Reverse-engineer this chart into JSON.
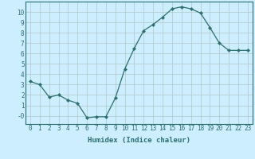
{
  "x": [
    0,
    1,
    2,
    3,
    4,
    5,
    6,
    7,
    8,
    9,
    10,
    11,
    12,
    13,
    14,
    15,
    16,
    17,
    18,
    19,
    20,
    21,
    22,
    23
  ],
  "y": [
    3.3,
    3.0,
    1.8,
    2.0,
    1.5,
    1.2,
    -0.2,
    -0.1,
    -0.1,
    1.7,
    4.5,
    6.5,
    8.2,
    8.8,
    9.5,
    10.3,
    10.5,
    10.3,
    9.9,
    8.5,
    7.0,
    6.3,
    6.3,
    6.3
  ],
  "line_color": "#2d6e6e",
  "marker": "D",
  "markersize": 2.2,
  "linewidth": 0.9,
  "background_color": "#cceeff",
  "grid_color": "#b0c8c8",
  "xlabel": "Humidex (Indice chaleur)",
  "xlabel_fontsize": 6.5,
  "ylabel_ticks": [
    0,
    1,
    2,
    3,
    4,
    5,
    6,
    7,
    8,
    9,
    10
  ],
  "ytick_labels": [
    "-0",
    "1",
    "2",
    "3",
    "4",
    "5",
    "6",
    "7",
    "8",
    "9",
    "10"
  ],
  "xtick_labels": [
    "0",
    "1",
    "2",
    "3",
    "4",
    "5",
    "6",
    "7",
    "8",
    "9",
    "10",
    "11",
    "12",
    "13",
    "14",
    "15",
    "16",
    "17",
    "18",
    "19",
    "20",
    "21",
    "22",
    "23"
  ],
  "xlim": [
    -0.5,
    23.5
  ],
  "ylim": [
    -0.8,
    11.0
  ],
  "tick_fontsize": 5.5,
  "spine_color": "#2d6e6e"
}
